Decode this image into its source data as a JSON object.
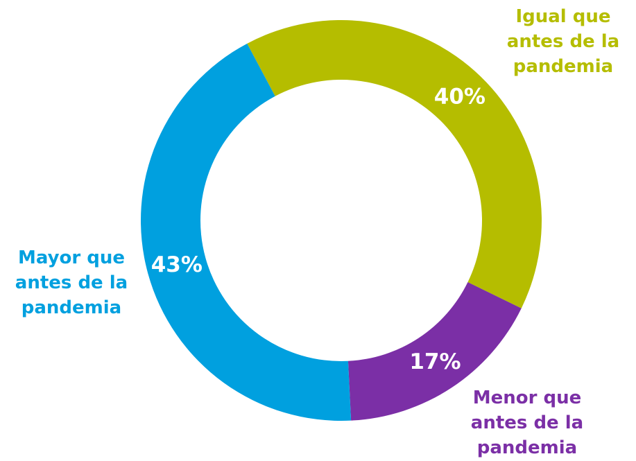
{
  "chart_data": {
    "type": "donut",
    "categories": [
      "Igual que antes de la pandemia",
      "Menor que antes de la pandemia",
      "Mayor que antes de la pandemia"
    ],
    "values": [
      40,
      17,
      43
    ],
    "value_labels": [
      "40%",
      "17%",
      "43%"
    ],
    "colors": [
      "#b5bd00",
      "#7b2fa6",
      "#00a0df"
    ]
  }
}
